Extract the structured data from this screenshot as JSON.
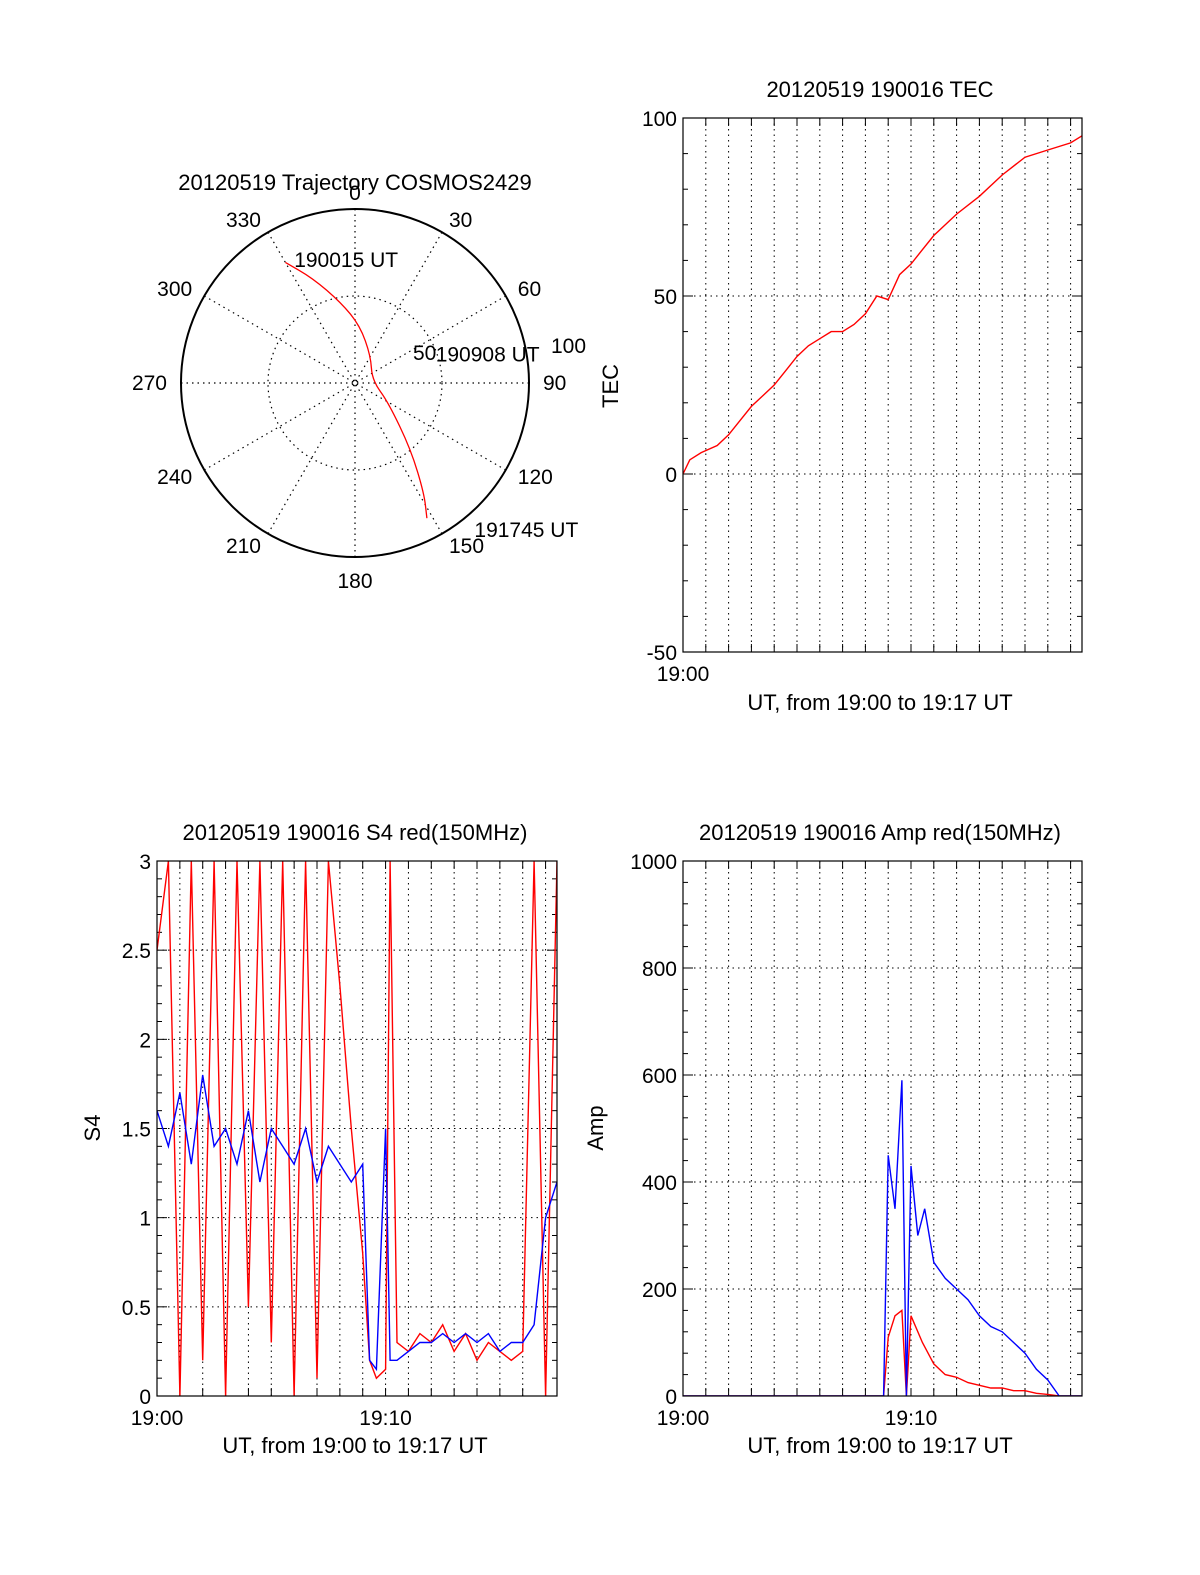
{
  "colors": {
    "red": "#ff0000",
    "blue": "#0000ff",
    "axis": "#000000"
  },
  "chart_data": [
    {
      "type": "polar",
      "title": "20120519 Trajectory COSMOS2429",
      "angle_labels": [
        "0",
        "30",
        "60",
        "90",
        "120",
        "150",
        "180",
        "210",
        "240",
        "270",
        "300",
        "330"
      ],
      "radius_labels": [
        "50",
        "100"
      ],
      "grid": true,
      "series": [
        {
          "color": "#ff0000",
          "points": [
            {
              "az": 330,
              "r": 80
            },
            {
              "az": 338,
              "r": 65
            },
            {
              "az": 350,
              "r": 47
            },
            {
              "az": 5,
              "r": 33
            },
            {
              "az": 30,
              "r": 18
            },
            {
              "az": 80,
              "r": 10
            },
            {
              "az": 120,
              "r": 22
            },
            {
              "az": 140,
              "r": 50
            },
            {
              "az": 148,
              "r": 75
            },
            {
              "az": 152,
              "r": 88
            }
          ]
        }
      ],
      "annotations": [
        {
          "text": "190015 UT",
          "az": 335,
          "r": 80
        },
        {
          "text": "190908 UT",
          "az": 75,
          "r": 48
        },
        {
          "text": "191745 UT",
          "az": 140,
          "r": 105
        }
      ]
    },
    {
      "type": "line",
      "title": "20120519 190016 TEC",
      "xlabel": "UT, from 19:00 to 19:17 UT",
      "ylabel": "TEC",
      "xlim": [
        0,
        17.5
      ],
      "ylim": [
        -50,
        100
      ],
      "yticks": [
        "100",
        "50",
        "0",
        "-50"
      ],
      "xticks": [
        {
          "x": 0,
          "label": "19:00"
        }
      ],
      "grid": true,
      "series": [
        {
          "color": "#ff0000",
          "x": [
            0,
            0.3,
            0.8,
            1.5,
            2.0,
            2.5,
            3.0,
            3.5,
            4.0,
            4.5,
            5.0,
            5.5,
            6.0,
            6.5,
            7.0,
            7.5,
            8.0,
            8.5,
            9.0,
            9.5,
            10.0,
            10.5,
            11.0,
            12.0,
            13.0,
            14.0,
            15.0,
            16.0,
            17.0,
            17.5
          ],
          "y": [
            0,
            4,
            6,
            8,
            11,
            15,
            19,
            22,
            25,
            29,
            33,
            36,
            38,
            40,
            40,
            42,
            45,
            50,
            49,
            56,
            59,
            63,
            67,
            73,
            78,
            84,
            89,
            91,
            93,
            95
          ]
        }
      ]
    },
    {
      "type": "line",
      "title": "20120519 190016 S4 red(150MHz)",
      "xlabel": "UT, from 19:00 to 19:17 UT",
      "ylabel": "S4",
      "xlim": [
        0,
        17.5
      ],
      "ylim": [
        0,
        3
      ],
      "yticks": [
        "0",
        "0.5",
        "1",
        "1.5",
        "2",
        "2.5",
        "3"
      ],
      "xticks": [
        {
          "x": 0,
          "label": "19:00"
        },
        {
          "x": 10,
          "label": "19:10"
        }
      ],
      "grid": true,
      "series": [
        {
          "color": "#ff0000",
          "x": [
            0,
            0.5,
            1,
            1.5,
            2,
            2.5,
            3,
            3.5,
            4,
            4.5,
            5,
            5.5,
            6,
            6.5,
            7,
            7.5,
            8,
            8.5,
            9,
            9.3,
            9.6,
            10,
            10.2,
            10.5,
            11,
            11.5,
            12,
            12.5,
            13,
            13.5,
            14,
            14.5,
            15,
            15.5,
            16,
            16.5,
            17,
            17.5
          ],
          "y": [
            2.5,
            3,
            0,
            3,
            0.2,
            3,
            0,
            3,
            0.5,
            3,
            0.3,
            3,
            0,
            3,
            0.1,
            3,
            2.3,
            1.5,
            0.8,
            0.2,
            0.1,
            0.15,
            3,
            0.3,
            0.25,
            0.35,
            0.3,
            0.4,
            0.25,
            0.35,
            0.2,
            0.3,
            0.25,
            0.2,
            0.25,
            3,
            0,
            3
          ]
        },
        {
          "color": "#0000ff",
          "x": [
            0,
            0.5,
            1,
            1.5,
            2,
            2.5,
            3,
            3.5,
            4,
            4.5,
            5,
            5.5,
            6,
            6.5,
            7,
            7.5,
            8,
            8.5,
            9,
            9.3,
            9.6,
            10,
            10.2,
            10.5,
            11,
            11.5,
            12,
            12.5,
            13,
            13.5,
            14,
            14.5,
            15,
            15.5,
            16,
            16.5,
            17,
            17.5
          ],
          "y": [
            1.6,
            1.4,
            1.7,
            1.3,
            1.8,
            1.4,
            1.5,
            1.3,
            1.6,
            1.2,
            1.5,
            1.4,
            1.3,
            1.5,
            1.2,
            1.4,
            1.3,
            1.2,
            1.3,
            0.2,
            0.15,
            1.5,
            0.2,
            0.2,
            0.25,
            0.3,
            0.3,
            0.35,
            0.3,
            0.35,
            0.3,
            0.35,
            0.25,
            0.3,
            0.3,
            0.4,
            1.0,
            1.2
          ]
        }
      ]
    },
    {
      "type": "line",
      "title": "20120519 190016 Amp red(150MHz)",
      "xlabel": "UT, from 19:00 to 19:17 UT",
      "ylabel": "Amp",
      "xlim": [
        0,
        17.5
      ],
      "ylim": [
        0,
        1000
      ],
      "yticks": [
        "0",
        "200",
        "400",
        "600",
        "800",
        "1000"
      ],
      "xticks": [
        {
          "x": 0,
          "label": "19:00"
        },
        {
          "x": 10,
          "label": "19:10"
        }
      ],
      "grid": true,
      "series": [
        {
          "color": "#ff0000",
          "x": [
            0,
            8.8,
            9.0,
            9.3,
            9.6,
            9.8,
            10.0,
            10.5,
            11,
            11.5,
            12,
            12.5,
            13,
            13.5,
            14,
            14.5,
            15,
            15.5,
            16,
            16.5,
            17.5
          ],
          "y": [
            0,
            0,
            110,
            150,
            160,
            0,
            150,
            100,
            60,
            40,
            35,
            25,
            20,
            15,
            15,
            10,
            10,
            5,
            3,
            0,
            0
          ]
        },
        {
          "color": "#0000ff",
          "x": [
            0,
            8.8,
            9.0,
            9.3,
            9.6,
            9.8,
            10.0,
            10.3,
            10.6,
            11,
            11.5,
            12,
            12.5,
            13,
            13.5,
            14,
            14.5,
            15,
            15.5,
            16,
            16.5,
            17.5
          ],
          "y": [
            0,
            0,
            450,
            350,
            590,
            0,
            430,
            300,
            350,
            250,
            220,
            200,
            180,
            150,
            130,
            120,
            100,
            80,
            50,
            30,
            0,
            0
          ]
        }
      ]
    }
  ]
}
